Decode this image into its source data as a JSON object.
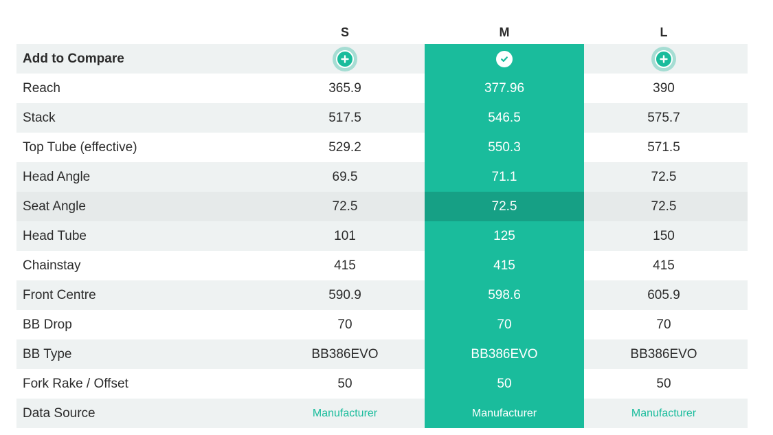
{
  "sizes": [
    "S",
    "M",
    "L"
  ],
  "compare": {
    "label": "Add to Compare",
    "buttons": [
      {
        "size": "S",
        "state": "add",
        "icon": "plus-icon"
      },
      {
        "size": "M",
        "state": "selected",
        "icon": "check-icon"
      },
      {
        "size": "L",
        "state": "add",
        "icon": "plus-icon"
      }
    ]
  },
  "rows": [
    {
      "label": "Reach",
      "values": [
        "365.9",
        "377.96",
        "390"
      ]
    },
    {
      "label": "Stack",
      "values": [
        "517.5",
        "546.5",
        "575.7"
      ]
    },
    {
      "label": "Top Tube (effective)",
      "values": [
        "529.2",
        "550.3",
        "571.5"
      ]
    },
    {
      "label": "Head Angle",
      "values": [
        "69.5",
        "71.1",
        "72.5"
      ]
    },
    {
      "label": "Seat Angle",
      "values": [
        "72.5",
        "72.5",
        "72.5"
      ]
    },
    {
      "label": "Head Tube",
      "values": [
        "101",
        "125",
        "150"
      ]
    },
    {
      "label": "Chainstay",
      "values": [
        "415",
        "415",
        "415"
      ]
    },
    {
      "label": "Front Centre",
      "values": [
        "590.9",
        "598.6",
        "605.9"
      ]
    },
    {
      "label": "BB Drop",
      "values": [
        "70",
        "70",
        "70"
      ]
    },
    {
      "label": "BB Type",
      "values": [
        "BB386EVO",
        "BB386EVO",
        "BB386EVO"
      ]
    },
    {
      "label": "Fork Rake / Offset",
      "values": [
        "50",
        "50",
        "50"
      ]
    }
  ],
  "data_source": {
    "label": "Data Source",
    "values": [
      "Manufacturer",
      "Manufacturer",
      "Manufacturer"
    ]
  },
  "colors": {
    "accent": "#1abc9c",
    "accent_dark": "#16a085",
    "row_alt": "#eef2f2"
  }
}
